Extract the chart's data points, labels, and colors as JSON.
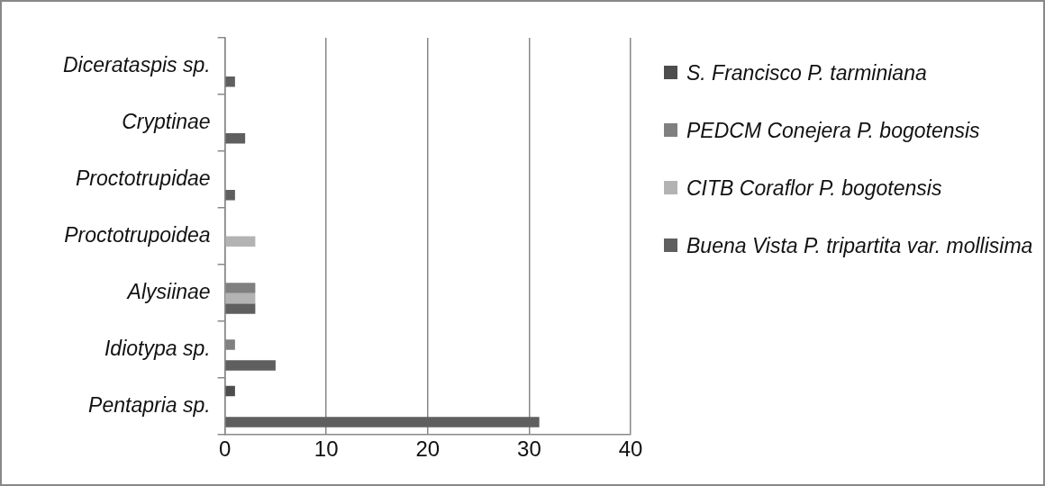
{
  "chart_data": {
    "type": "bar",
    "orientation": "horizontal",
    "categories": [
      "Dicerataspis sp.",
      "Cryptinae",
      "Proctotrupidae",
      "Proctotrupoidea",
      "Alysiinae",
      "Idiotypa sp.",
      "Pentapria sp."
    ],
    "series": [
      {
        "name": "S. Francisco  P. tarminiana",
        "color": "#4d4d4d",
        "values": [
          null,
          null,
          null,
          null,
          null,
          null,
          1
        ]
      },
      {
        "name": "PEDCM Conejera P. bogotensis",
        "color": "#808080",
        "values": [
          null,
          null,
          null,
          null,
          3,
          1,
          null
        ]
      },
      {
        "name": "CITB Coraflor P. bogotensis",
        "color": "#b3b3b3",
        "values": [
          null,
          null,
          null,
          3,
          3,
          null,
          null
        ]
      },
      {
        "name": "Buena Vista P. tripartita var. mollisima",
        "color": "#5f5f5f",
        "values": [
          1,
          2,
          1,
          null,
          3,
          5,
          31
        ]
      }
    ],
    "xlim": [
      0,
      40
    ],
    "xticks": [
      0,
      10,
      20,
      30,
      40
    ],
    "grid": "x",
    "legend": "right"
  }
}
